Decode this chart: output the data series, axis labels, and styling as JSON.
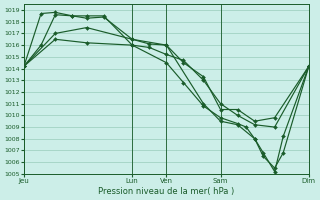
{
  "xlabel": "Pression niveau de la mer( hPa )",
  "bg_color": "#cceee8",
  "grid_color": "#99ccbb",
  "line_color": "#1a5c2a",
  "ylim": [
    1005,
    1019.5
  ],
  "yticks": [
    1005,
    1006,
    1007,
    1008,
    1009,
    1010,
    1011,
    1012,
    1013,
    1014,
    1015,
    1016,
    1017,
    1018,
    1019
  ],
  "day_labels": [
    "Jeu",
    "Lun",
    "Ven",
    "Sam",
    "Dim"
  ],
  "day_positions": [
    0.0,
    0.38,
    0.5,
    0.69,
    1.0
  ],
  "xlim": [
    0.0,
    1.0
  ],
  "series1_x": [
    0.0,
    0.06,
    0.11,
    0.17,
    0.22,
    0.28,
    0.38,
    0.44,
    0.5,
    0.56,
    0.63,
    0.69,
    0.75,
    0.81,
    0.88,
    1.0
  ],
  "series1_y": [
    1014.2,
    1016.0,
    1018.6,
    1018.5,
    1018.3,
    1018.4,
    1016.5,
    1016.1,
    1016.0,
    1014.5,
    1013.3,
    1010.5,
    1010.5,
    1009.5,
    1009.8,
    1014.2
  ],
  "series2_x": [
    0.0,
    0.06,
    0.11,
    0.17,
    0.22,
    0.28,
    0.38,
    0.44,
    0.5,
    0.56,
    0.63,
    0.69,
    0.75,
    0.81,
    0.88,
    1.0
  ],
  "series2_y": [
    1014.2,
    1018.7,
    1018.8,
    1018.5,
    1018.5,
    1018.5,
    1016.0,
    1015.8,
    1015.2,
    1014.7,
    1013.0,
    1011.0,
    1010.0,
    1009.2,
    1009.0,
    1014.2
  ],
  "series3_x": [
    0.0,
    0.11,
    0.22,
    0.38,
    0.5,
    0.63,
    0.69,
    0.75,
    0.81,
    0.84,
    0.88,
    0.91,
    1.0
  ],
  "series3_y": [
    1014.2,
    1017.0,
    1017.5,
    1016.5,
    1016.0,
    1011.0,
    1009.5,
    1009.2,
    1008.0,
    1006.8,
    1005.2,
    1008.2,
    1014.2
  ],
  "series4_x": [
    0.0,
    0.11,
    0.22,
    0.38,
    0.5,
    0.56,
    0.63,
    0.69,
    0.75,
    0.78,
    0.81,
    0.84,
    0.88,
    0.91,
    1.0
  ],
  "series4_y": [
    1014.2,
    1016.5,
    1016.2,
    1016.0,
    1014.5,
    1012.8,
    1010.8,
    1009.8,
    1009.3,
    1009.0,
    1008.0,
    1006.5,
    1005.5,
    1006.8,
    1014.2
  ]
}
